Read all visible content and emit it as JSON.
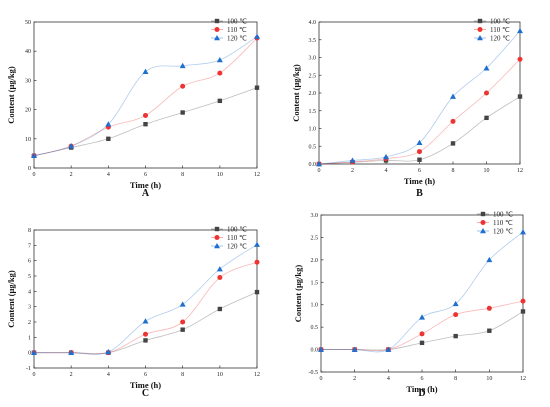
{
  "chart_data": [
    {
      "type": "line",
      "panel_label": "A",
      "xlabel": "Time (h)",
      "ylabel": "Content (μg/kg)",
      "xlim": [
        0,
        12
      ],
      "ylim": [
        0,
        50
      ],
      "xticks": [
        0,
        2,
        4,
        6,
        8,
        10,
        12
      ],
      "yticks": [
        0,
        10,
        20,
        30,
        40,
        50
      ],
      "x": [
        0,
        2,
        4,
        6,
        8,
        10,
        12
      ],
      "grid": false,
      "legend_position": "top-right",
      "series": [
        {
          "name": "100 ℃",
          "marker": "square",
          "color": "#444444",
          "values": [
            4.2,
            7.0,
            10.0,
            15.0,
            19.0,
            23.0,
            27.5
          ]
        },
        {
          "name": "110 ℃",
          "marker": "circle",
          "color": "#ee3333",
          "values": [
            4.2,
            7.5,
            14.0,
            18.0,
            28.0,
            32.5,
            44.5
          ]
        },
        {
          "name": "120 ℃",
          "marker": "triangle",
          "color": "#1f6fcf",
          "values": [
            4.2,
            7.5,
            15.0,
            33.0,
            35.0,
            37.0,
            45.0
          ]
        }
      ]
    },
    {
      "type": "line",
      "panel_label": "B",
      "xlabel": "Time (h)",
      "ylabel": "Content (μg/kg)",
      "xlim": [
        0,
        12
      ],
      "ylim": [
        0,
        4.0
      ],
      "xticks": [
        0,
        2,
        4,
        6,
        8,
        10,
        12
      ],
      "yticks": [
        0.0,
        0.5,
        1.0,
        1.5,
        2.0,
        2.5,
        3.0,
        3.5,
        4.0
      ],
      "x": [
        0,
        2,
        4,
        6,
        8,
        10,
        12
      ],
      "grid": false,
      "legend_position": "top-right",
      "series": [
        {
          "name": "100 ℃",
          "marker": "square",
          "color": "#444444",
          "values": [
            0.0,
            0.05,
            0.1,
            0.12,
            0.58,
            1.3,
            1.9
          ]
        },
        {
          "name": "110 ℃",
          "marker": "circle",
          "color": "#ee3333",
          "values": [
            0.0,
            0.06,
            0.15,
            0.35,
            1.2,
            2.0,
            2.95
          ]
        },
        {
          "name": "120 ℃",
          "marker": "triangle",
          "color": "#1f6fcf",
          "values": [
            0.0,
            0.1,
            0.2,
            0.6,
            1.9,
            2.7,
            3.75
          ]
        }
      ]
    },
    {
      "type": "line",
      "panel_label": "C",
      "xlabel": "Time (h)",
      "ylabel": "Content (μg/kg)",
      "xlim": [
        0,
        12
      ],
      "ylim": [
        -1,
        8
      ],
      "xticks": [
        0,
        2,
        4,
        6,
        8,
        10,
        12
      ],
      "yticks": [
        -1,
        0,
        1,
        2,
        3,
        4,
        5,
        6,
        7,
        8
      ],
      "x": [
        0,
        2,
        4,
        6,
        8,
        10,
        12
      ],
      "grid": false,
      "legend_position": "top-right",
      "series": [
        {
          "name": "100 ℃",
          "marker": "square",
          "color": "#444444",
          "values": [
            0.0,
            0.0,
            0.0,
            0.8,
            1.5,
            2.85,
            3.95
          ]
        },
        {
          "name": "110 ℃",
          "marker": "circle",
          "color": "#ee3333",
          "values": [
            0.0,
            0.0,
            0.0,
            1.2,
            2.0,
            4.9,
            5.9
          ]
        },
        {
          "name": "120 ℃",
          "marker": "triangle",
          "color": "#1f6fcf",
          "values": [
            0.0,
            0.0,
            0.05,
            2.05,
            3.15,
            5.45,
            7.05
          ]
        }
      ]
    },
    {
      "type": "line",
      "panel_label": "D",
      "xlabel": "Time (h)",
      "ylabel": "Content (μg/kg)",
      "xlim": [
        0,
        12
      ],
      "ylim": [
        -0.5,
        3.0
      ],
      "xticks": [
        0,
        2,
        4,
        6,
        8,
        10,
        12
      ],
      "yticks": [
        -0.5,
        0.0,
        0.5,
        1.0,
        1.5,
        2.0,
        2.5,
        3.0
      ],
      "x": [
        0,
        2,
        4,
        6,
        8,
        10,
        12
      ],
      "grid": false,
      "legend_position": "top-right",
      "series": [
        {
          "name": "100 ℃",
          "marker": "square",
          "color": "#444444",
          "values": [
            0.0,
            0.0,
            0.0,
            0.15,
            0.3,
            0.42,
            0.85
          ]
        },
        {
          "name": "110 ℃",
          "marker": "circle",
          "color": "#ee3333",
          "values": [
            0.0,
            0.0,
            0.0,
            0.35,
            0.78,
            0.92,
            1.08
          ]
        },
        {
          "name": "120 ℃",
          "marker": "triangle",
          "color": "#1f6fcf",
          "values": [
            0.0,
            0.0,
            0.0,
            0.72,
            1.02,
            2.0,
            2.62
          ]
        }
      ]
    }
  ]
}
